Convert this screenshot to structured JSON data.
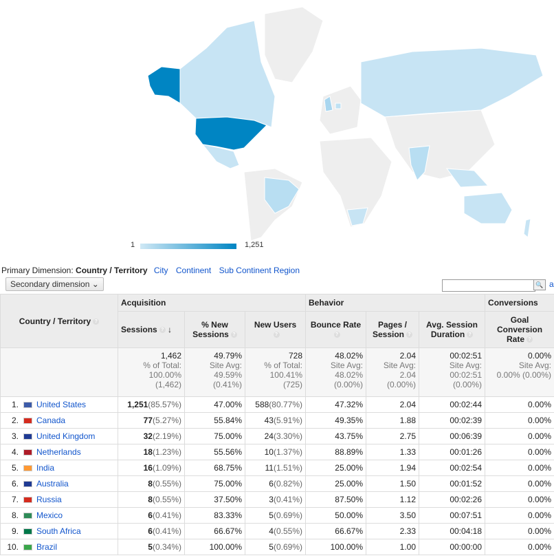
{
  "legend": {
    "min": "1",
    "max": "1,251"
  },
  "primary_dimension": {
    "label": "Primary Dimension:",
    "current": "Country / Territory",
    "options": [
      "City",
      "Continent",
      "Sub Continent Region"
    ]
  },
  "secondary_dimension": {
    "label": "Secondary dimension"
  },
  "search": {
    "placeholder": "",
    "advanced_partial": "a"
  },
  "groups": {
    "acquisition": "Acquisition",
    "behavior": "Behavior",
    "conversions": "Conversions"
  },
  "columns": {
    "country": "Country / Territory",
    "sessions": "Sessions",
    "new_sessions": "% New Sessions",
    "new_users": "New Users",
    "bounce": "Bounce Rate",
    "pages": "Pages / Session",
    "duration": "Avg. Session Duration",
    "goal": "Goal Conversion Rate"
  },
  "totals": {
    "sessions": [
      "1,462",
      "% of Total:",
      "100.00%",
      "(1,462)"
    ],
    "new_sessions": [
      "49.79%",
      "Site Avg:",
      "49.59%",
      "(0.41%)"
    ],
    "new_users": [
      "728",
      "% of Total:",
      "100.41%",
      "(725)"
    ],
    "bounce": [
      "48.02%",
      "Site Avg:",
      "48.02%",
      "(0.00%)"
    ],
    "pages": [
      "2.04",
      "Site Avg:",
      "2.04",
      "(0.00%)"
    ],
    "duration": [
      "00:02:51",
      "Site Avg:",
      "00:02:51",
      "(0.00%)"
    ],
    "goal": [
      "0.00%",
      "Site Avg:",
      "0.00% (0.00%)",
      ""
    ]
  },
  "rows": [
    {
      "idx": "1.",
      "country": "United States",
      "sessions": "1,251",
      "sessions_pct": "(85.57%)",
      "new_sessions": "47.00%",
      "new_users": "588",
      "new_users_pct": "(80.77%)",
      "bounce": "47.32%",
      "pages": "2.04",
      "duration": "00:02:44",
      "goal": "0.00%"
    },
    {
      "idx": "2.",
      "country": "Canada",
      "sessions": "77",
      "sessions_pct": "(5.27%)",
      "new_sessions": "55.84%",
      "new_users": "43",
      "new_users_pct": "(5.91%)",
      "bounce": "49.35%",
      "pages": "1.88",
      "duration": "00:02:39",
      "goal": "0.00%"
    },
    {
      "idx": "3.",
      "country": "United Kingdom",
      "sessions": "32",
      "sessions_pct": "(2.19%)",
      "new_sessions": "75.00%",
      "new_users": "24",
      "new_users_pct": "(3.30%)",
      "bounce": "43.75%",
      "pages": "2.75",
      "duration": "00:06:39",
      "goal": "0.00%"
    },
    {
      "idx": "4.",
      "country": "Netherlands",
      "sessions": "18",
      "sessions_pct": "(1.23%)",
      "new_sessions": "55.56%",
      "new_users": "10",
      "new_users_pct": "(1.37%)",
      "bounce": "88.89%",
      "pages": "1.33",
      "duration": "00:01:26",
      "goal": "0.00%"
    },
    {
      "idx": "5.",
      "country": "India",
      "sessions": "16",
      "sessions_pct": "(1.09%)",
      "new_sessions": "68.75%",
      "new_users": "11",
      "new_users_pct": "(1.51%)",
      "bounce": "25.00%",
      "pages": "1.94",
      "duration": "00:02:54",
      "goal": "0.00%"
    },
    {
      "idx": "6.",
      "country": "Australia",
      "sessions": "8",
      "sessions_pct": "(0.55%)",
      "new_sessions": "75.00%",
      "new_users": "6",
      "new_users_pct": "(0.82%)",
      "bounce": "25.00%",
      "pages": "1.50",
      "duration": "00:01:52",
      "goal": "0.00%"
    },
    {
      "idx": "7.",
      "country": "Russia",
      "sessions": "8",
      "sessions_pct": "(0.55%)",
      "new_sessions": "37.50%",
      "new_users": "3",
      "new_users_pct": "(0.41%)",
      "bounce": "87.50%",
      "pages": "1.12",
      "duration": "00:02:26",
      "goal": "0.00%"
    },
    {
      "idx": "8.",
      "country": "Mexico",
      "sessions": "6",
      "sessions_pct": "(0.41%)",
      "new_sessions": "83.33%",
      "new_users": "5",
      "new_users_pct": "(0.69%)",
      "bounce": "50.00%",
      "pages": "3.50",
      "duration": "00:07:51",
      "goal": "0.00%"
    },
    {
      "idx": "9.",
      "country": "South Africa",
      "sessions": "6",
      "sessions_pct": "(0.41%)",
      "new_sessions": "66.67%",
      "new_users": "4",
      "new_users_pct": "(0.55%)",
      "bounce": "66.67%",
      "pages": "2.33",
      "duration": "00:04:18",
      "goal": "0.00%"
    },
    {
      "idx": "10.",
      "country": "Brazil",
      "sessions": "5",
      "sessions_pct": "(0.34%)",
      "new_sessions": "100.00%",
      "new_users": "5",
      "new_users_pct": "(0.69%)",
      "bounce": "100.00%",
      "pages": "1.00",
      "duration": "00:00:00",
      "goal": "0.00%"
    }
  ],
  "colors": {
    "map_low": "#cfe8f5",
    "map_high": "#0085c3",
    "map_none": "#eeeeee",
    "link": "#1155cc"
  }
}
